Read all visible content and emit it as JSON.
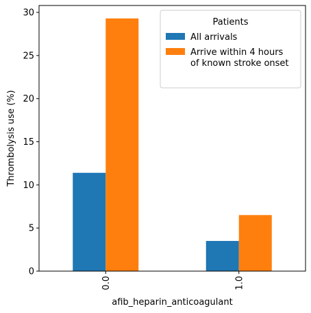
{
  "chart_data": {
    "type": "bar",
    "xlabel": "afib_heparin_anticoagulant",
    "ylabel": "Thrombolysis use (%)",
    "categories": [
      "0.0",
      "1.0"
    ],
    "ylim": [
      0,
      30.8
    ],
    "yticks": [
      0,
      5,
      10,
      15,
      20,
      25,
      30
    ],
    "ytick_labels": [
      "0",
      "5",
      "10",
      "15",
      "20",
      "25",
      "30"
    ],
    "grid": false,
    "legend": {
      "title": "Patients",
      "placement": "top-right",
      "entries": [
        "All arrivals",
        "Arrive within 4 hours\nof known stroke onset"
      ]
    },
    "series": [
      {
        "name": "All arrivals",
        "color": "#1f77b4",
        "values": [
          11.4,
          3.5
        ]
      },
      {
        "name": "Arrive within 4 hours of known stroke onset",
        "color": "#ff7f0e",
        "values": [
          29.3,
          6.5
        ]
      }
    ]
  }
}
